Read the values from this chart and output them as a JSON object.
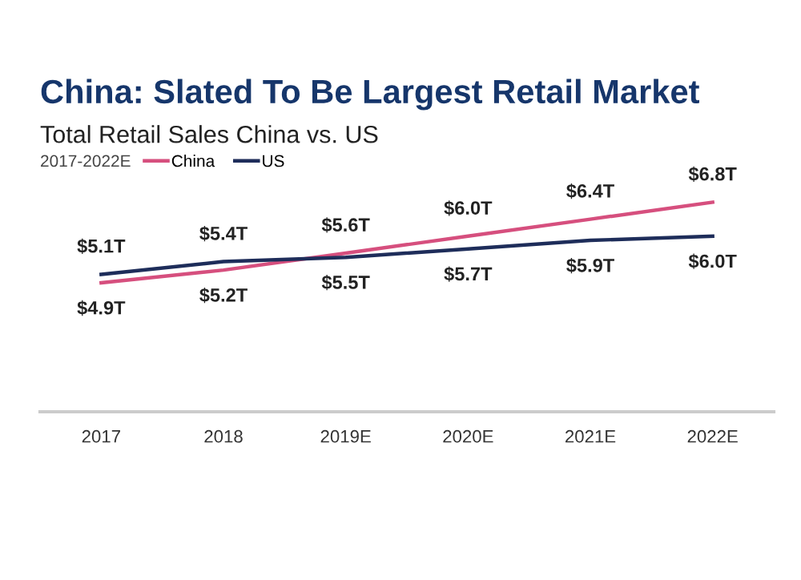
{
  "chart_data": {
    "type": "line",
    "title": "China: Slated To Be Largest Retail Market",
    "subtitle": "Total Retail Sales China vs. US",
    "annotations": [
      "2017-2022E"
    ],
    "categories": [
      "2017",
      "2018",
      "2019E",
      "2020E",
      "2021E",
      "2022E"
    ],
    "series": [
      {
        "name": "China",
        "color": "#d64f7e",
        "values": [
          4.9,
          5.2,
          5.6,
          6.0,
          6.4,
          6.8
        ],
        "value_labels": [
          "$4.9T",
          "$5.2T",
          "$5.6T",
          "$6.0T",
          "$6.4T",
          "$6.8T"
        ]
      },
      {
        "name": "US",
        "color": "#1e2d5a",
        "values": [
          5.1,
          5.4,
          5.5,
          5.7,
          5.9,
          6.0
        ],
        "value_labels": [
          "$5.1T",
          "$5.4T",
          "$5.5T",
          "$5.7T",
          "$5.9T",
          "$6.0T"
        ]
      }
    ],
    "legend": "top left",
    "grid": false,
    "marker": "none",
    "line_style": "solid"
  }
}
